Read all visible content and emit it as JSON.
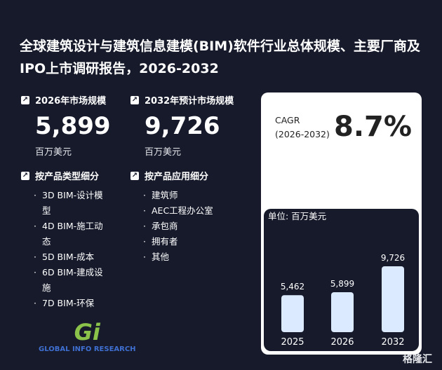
{
  "title": "全球建筑设计与建筑信息建模(BIM)软件行业总体规模、主要厂商及IPO上市调研报告，2026-2032",
  "stats": [
    {
      "label": "2026年市场规模",
      "value": "5,899",
      "unit": "百万美元"
    },
    {
      "label": "2032年预计市场规模",
      "value": "9,726",
      "unit": "百万美元"
    }
  ],
  "segments": [
    {
      "label": "按产品类型细分",
      "items": [
        "3D BIM-设计模型",
        "4D BIM-施工动态",
        "5D BIM-成本",
        "6D BIM-建成设施",
        "7D BIM-环保"
      ]
    },
    {
      "label": "按产品应用细分",
      "items": [
        "建筑师",
        "AEC工程办公室",
        "承包商",
        "拥有者",
        "其他"
      ]
    }
  ],
  "cagr": {
    "label": "CAGR",
    "period": "(2026-2032)",
    "value": "8.7%"
  },
  "chart_data": {
    "type": "bar",
    "title": "单位: 百万美元",
    "categories": [
      "2025",
      "2026",
      "2032"
    ],
    "values": [
      5462,
      5899,
      9726
    ],
    "value_labels": [
      "5,462",
      "5,899",
      "9,726"
    ],
    "color": "#dbeafe"
  },
  "logo": {
    "mark": "Gi",
    "text": "GLOBAL INFO RESEARCH"
  },
  "watermark": "格隆汇"
}
